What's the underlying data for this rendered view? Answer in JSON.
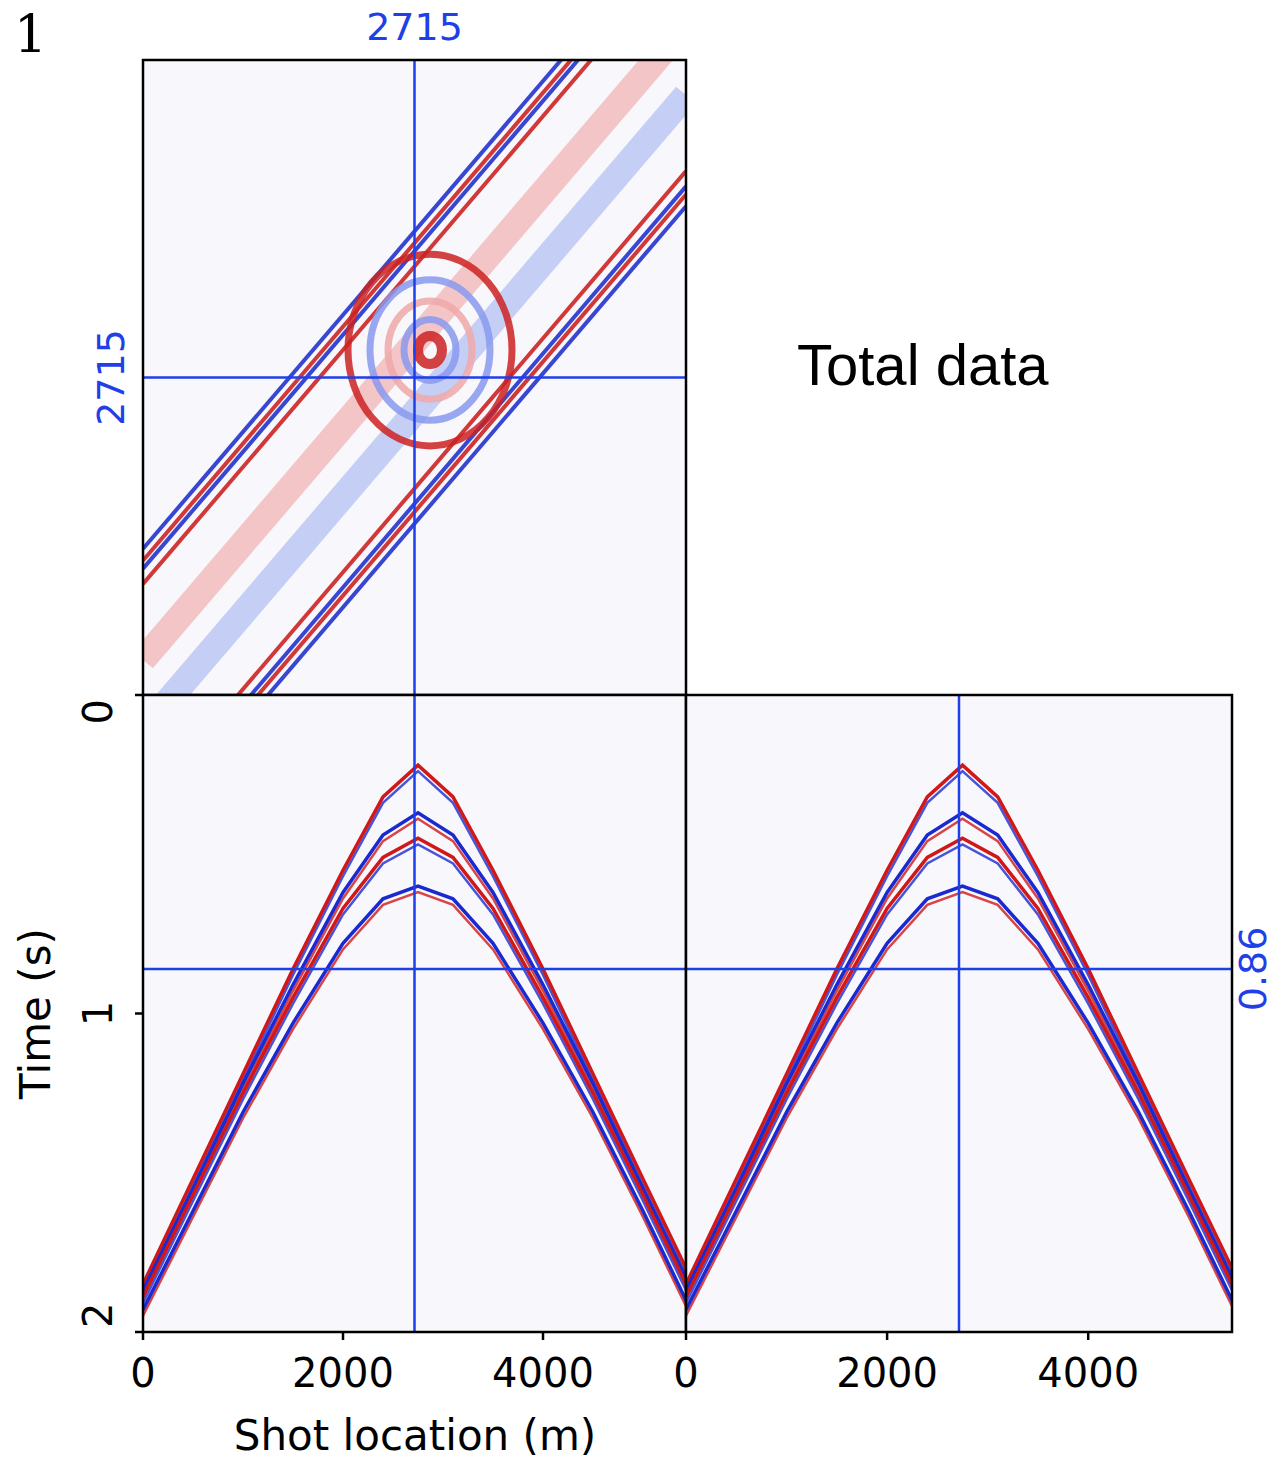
{
  "chart_data": [
    {
      "type": "time_slice",
      "title": "Total data",
      "panel_label": "1",
      "xlim": [
        0,
        5430
      ],
      "ylim": [
        0,
        5430
      ],
      "tick_labels": false,
      "crosshair": {
        "x": 2715,
        "y": 2715,
        "t": 0.86
      },
      "bands": {
        "offsets": [
          -1250,
          -1150,
          -1080,
          -950,
          -300,
          300,
          950,
          1080,
          1150,
          1250
        ],
        "colors": [
          "#2233cc",
          "#cc2222",
          "#2233cc",
          "#cc2222",
          "#b8c4f2",
          "#f2b8b8",
          "#cc2222",
          "#2233cc",
          "#cc2222",
          "#2233cc"
        ]
      },
      "rings": {
        "center": [
          2870,
          2950
        ],
        "radii": [
          120,
          260,
          420,
          600,
          820
        ],
        "colors": [
          "#cc2222",
          "#8899ee",
          "#f0a8a8",
          "#8899ee",
          "#cc2222"
        ]
      }
    },
    {
      "type": "seismic_section",
      "x_label": "Shot location (m)",
      "y_label": "Time (s)",
      "xlim": [
        0,
        5430
      ],
      "ylim": [
        0,
        2
      ],
      "xticks": [
        0,
        2000,
        4000
      ],
      "yticks": [
        0,
        1,
        2
      ],
      "x": [
        0,
        500,
        1000,
        1500,
        2000,
        2400,
        2750,
        3100,
        3500,
        4000,
        4500,
        5000,
        5430
      ],
      "series": [
        {
          "color": "#d01818",
          "values": [
            1.85,
            1.52,
            1.19,
            0.86,
            0.55,
            0.32,
            0.22,
            0.32,
            0.55,
            0.86,
            1.19,
            1.52,
            1.8
          ]
        },
        {
          "color": "#1a2ad0",
          "values": [
            1.87,
            1.55,
            1.22,
            0.91,
            0.62,
            0.44,
            0.37,
            0.44,
            0.62,
            0.91,
            1.22,
            1.55,
            1.83
          ]
        },
        {
          "color": "#d01818",
          "values": [
            1.89,
            1.57,
            1.25,
            0.95,
            0.67,
            0.51,
            0.45,
            0.51,
            0.67,
            0.95,
            1.25,
            1.57,
            1.85
          ]
        },
        {
          "color": "#1a2ad0",
          "values": [
            1.93,
            1.62,
            1.31,
            1.03,
            0.78,
            0.64,
            0.6,
            0.64,
            0.78,
            1.03,
            1.31,
            1.62,
            1.9
          ]
        }
      ]
    },
    {
      "type": "seismic_section",
      "xlim": [
        0,
        5430
      ],
      "ylim": [
        0,
        2
      ],
      "xticks": [
        0,
        2000,
        4000
      ],
      "x": [
        0,
        500,
        1000,
        1500,
        2000,
        2400,
        2750,
        3100,
        3500,
        4000,
        4500,
        5000,
        5430
      ],
      "series": [
        {
          "color": "#d01818",
          "values": [
            1.85,
            1.52,
            1.19,
            0.86,
            0.55,
            0.32,
            0.22,
            0.32,
            0.55,
            0.86,
            1.19,
            1.52,
            1.8
          ]
        },
        {
          "color": "#1a2ad0",
          "values": [
            1.87,
            1.55,
            1.22,
            0.91,
            0.62,
            0.44,
            0.37,
            0.44,
            0.62,
            0.91,
            1.22,
            1.55,
            1.83
          ]
        },
        {
          "color": "#d01818",
          "values": [
            1.89,
            1.57,
            1.25,
            0.95,
            0.67,
            0.51,
            0.45,
            0.51,
            0.67,
            0.95,
            1.25,
            1.57,
            1.85
          ]
        },
        {
          "color": "#1a2ad0",
          "values": [
            1.93,
            1.62,
            1.31,
            1.03,
            0.78,
            0.64,
            0.6,
            0.64,
            0.78,
            1.03,
            1.31,
            1.62,
            1.9
          ]
        }
      ]
    }
  ]
}
